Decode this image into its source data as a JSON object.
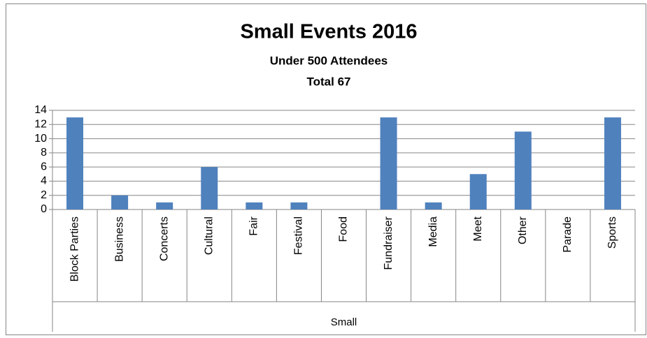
{
  "chart_data": {
    "type": "bar",
    "title": "Small Events 2016",
    "subtitle": [
      "Under 500 Attendees",
      "Total 67"
    ],
    "categories": [
      "Block Parties",
      "Business",
      "Concerts",
      "Cultural",
      "Fair",
      "Festival",
      "Food",
      "Fundraiser",
      "Media",
      "Meet",
      "Other",
      "Parade",
      "Sports"
    ],
    "group_label": "Small",
    "values": [
      13,
      2,
      1,
      6,
      1,
      1,
      0,
      13,
      1,
      5,
      11,
      0,
      13
    ],
    "color": "#4f81bd",
    "ylim": [
      0,
      14
    ],
    "yticks": [
      0,
      2,
      4,
      6,
      8,
      10,
      12,
      14
    ],
    "grid": true
  }
}
